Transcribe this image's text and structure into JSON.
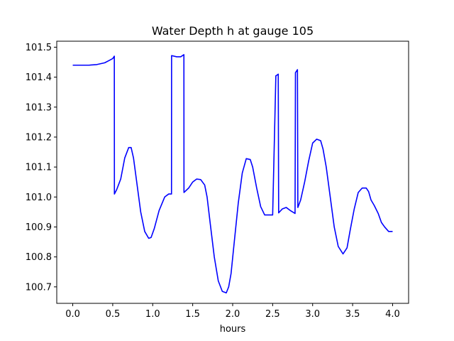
{
  "chart_data": {
    "type": "line",
    "title": "Water Depth h at gauge 105",
    "xlabel": "hours",
    "ylabel": "",
    "xlim": [
      -0.2,
      4.2
    ],
    "ylim": [
      100.645,
      101.52
    ],
    "xticks": [
      "0.0",
      "0.5",
      "1.0",
      "1.5",
      "2.0",
      "2.5",
      "3.0",
      "3.5",
      "4.0"
    ],
    "yticks": [
      "100.7",
      "100.8",
      "100.9",
      "101.0",
      "101.1",
      "101.2",
      "101.3",
      "101.4",
      "101.5"
    ],
    "grid": false,
    "series": [
      {
        "color": "#0000ff",
        "x": [
          0.0,
          0.1,
          0.2,
          0.3,
          0.4,
          0.45,
          0.5,
          0.52,
          0.521,
          0.55,
          0.6,
          0.65,
          0.7,
          0.73,
          0.76,
          0.8,
          0.85,
          0.9,
          0.95,
          0.98,
          1.02,
          1.08,
          1.15,
          1.2,
          1.235,
          1.236,
          1.3,
          1.35,
          1.39,
          1.391,
          1.45,
          1.5,
          1.55,
          1.6,
          1.65,
          1.68,
          1.72,
          1.77,
          1.82,
          1.87,
          1.92,
          1.95,
          1.98,
          2.02,
          2.07,
          2.12,
          2.17,
          2.22,
          2.25,
          2.3,
          2.35,
          2.4,
          2.45,
          2.5,
          2.54,
          2.545,
          2.57,
          2.575,
          2.62,
          2.67,
          2.72,
          2.78,
          2.785,
          2.81,
          2.815,
          2.85,
          2.9,
          2.95,
          3.0,
          3.05,
          3.1,
          3.13,
          3.17,
          3.22,
          3.27,
          3.32,
          3.38,
          3.43,
          3.47,
          3.52,
          3.57,
          3.62,
          3.67,
          3.7,
          3.73,
          3.77,
          3.82,
          3.86,
          3.9,
          3.95,
          4.0
        ],
        "y": [
          101.44,
          101.44,
          101.44,
          101.442,
          101.448,
          101.455,
          101.462,
          101.47,
          101.01,
          101.025,
          101.06,
          101.13,
          101.165,
          101.165,
          101.13,
          101.05,
          100.95,
          100.885,
          100.862,
          100.865,
          100.895,
          100.955,
          101.0,
          101.01,
          101.01,
          101.472,
          101.468,
          101.468,
          101.475,
          101.015,
          101.03,
          101.05,
          101.06,
          101.058,
          101.04,
          101.0,
          100.91,
          100.8,
          100.72,
          100.685,
          100.68,
          100.7,
          100.745,
          100.85,
          100.98,
          101.08,
          101.128,
          101.125,
          101.1,
          101.03,
          100.968,
          100.94,
          100.94,
          100.94,
          101.405,
          101.405,
          101.41,
          100.947,
          100.96,
          100.965,
          100.955,
          100.945,
          101.415,
          101.425,
          100.965,
          100.99,
          101.05,
          101.12,
          101.18,
          101.193,
          101.188,
          101.16,
          101.1,
          101.0,
          100.9,
          100.835,
          100.81,
          100.83,
          100.89,
          100.96,
          101.015,
          101.03,
          101.03,
          101.018,
          100.99,
          100.972,
          100.945,
          100.915,
          100.9,
          100.885,
          100.885
        ]
      }
    ]
  }
}
